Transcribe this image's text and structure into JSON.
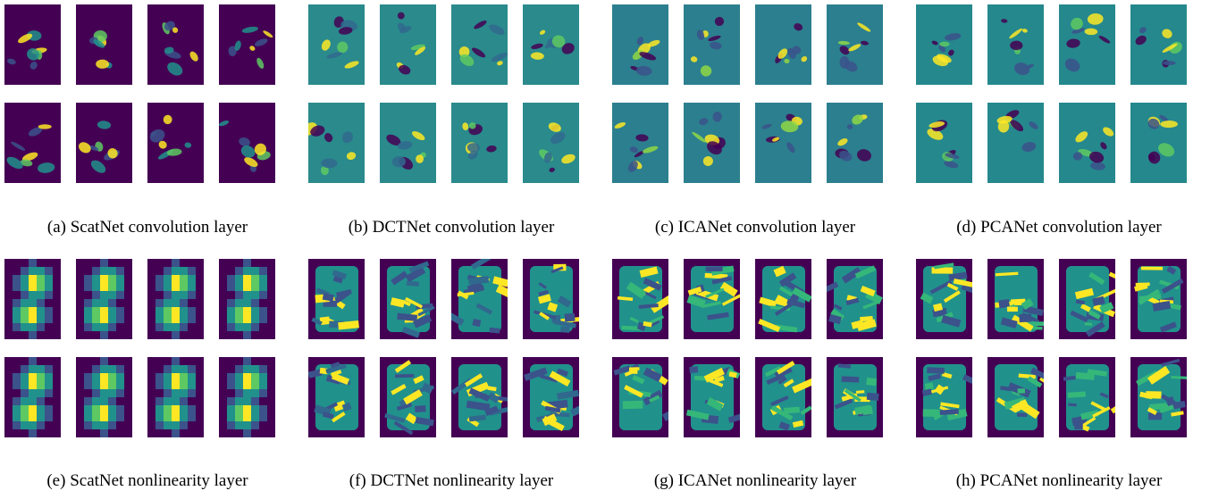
{
  "panels": [
    {
      "caption": "(a) ScatNet convolution layer"
    },
    {
      "caption": "(b) DCTNet convolution layer"
    },
    {
      "caption": "(c) ICANet convolution layer"
    },
    {
      "caption": "(d) PCANet convolution layer"
    },
    {
      "caption": "(e) ScatNet nonlinearity layer"
    },
    {
      "caption": "(f) DCTNet nonlinearity layer"
    },
    {
      "caption": "(g) ICANet nonlinearity layer"
    },
    {
      "caption": "(h) PCANet nonlinearity layer"
    }
  ]
}
